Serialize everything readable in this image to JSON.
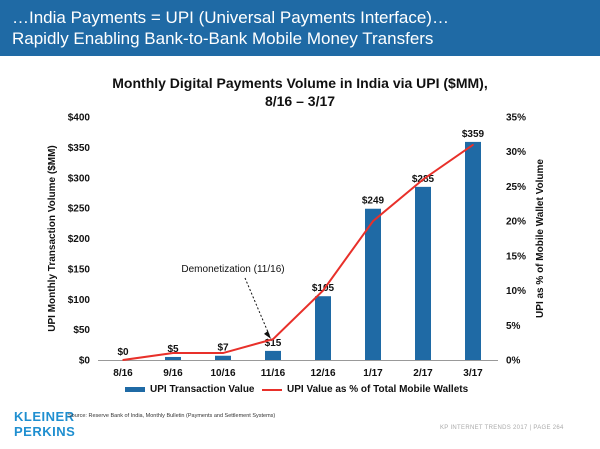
{
  "header": {
    "line1": "…India Payments = UPI (Universal Payments Interface)…",
    "line2": "Rapidly Enabling Bank-to-Bank Mobile Money Transfers"
  },
  "chart_data": {
    "type": "bar",
    "title_line1": "Monthly Digital Payments Volume in India via UPI ($MM),",
    "title_line2": "8/16 – 3/17",
    "categories": [
      "8/16",
      "9/16",
      "10/16",
      "11/16",
      "12/16",
      "1/17",
      "2/17",
      "3/17"
    ],
    "series": [
      {
        "name": "UPI Transaction Value",
        "kind": "bar",
        "axis": "left",
        "color": "#1f6aa5",
        "values": [
          0,
          5,
          7,
          15,
          105,
          249,
          285,
          359
        ],
        "labels": [
          "$0",
          "$5",
          "$7",
          "$15",
          "$105",
          "$249",
          "$285",
          "$359"
        ]
      },
      {
        "name": "UPI Value as % of Total Mobile Wallets",
        "kind": "line",
        "axis": "right",
        "color": "#e8302a",
        "values": [
          0,
          1,
          1,
          3,
          10,
          20,
          26,
          31
        ]
      }
    ],
    "ylabel": "UPI Monthly Transaction Volume ($MM)",
    "y2label": "UPI as % of Mobile Wallet Volume",
    "ylim": [
      0,
      400
    ],
    "y2lim": [
      0,
      35
    ],
    "yticks": [
      "$0",
      "$50",
      "$100",
      "$150",
      "$200",
      "$250",
      "$300",
      "$350",
      "$400"
    ],
    "y2ticks": [
      "0%",
      "5%",
      "10%",
      "15%",
      "20%",
      "25%",
      "30%",
      "35%"
    ],
    "annotation": {
      "text": "Demonetization (11/16)",
      "category": "11/16"
    }
  },
  "footer": {
    "logo_line1": "KLEINER",
    "logo_line2": "PERKINS",
    "source": "Source: Reserve Bank of India, Monthly Bulletin (Payments and Settlement Systems)",
    "right": "KP INTERNET TRENDS 2017  |  PAGE 264"
  }
}
